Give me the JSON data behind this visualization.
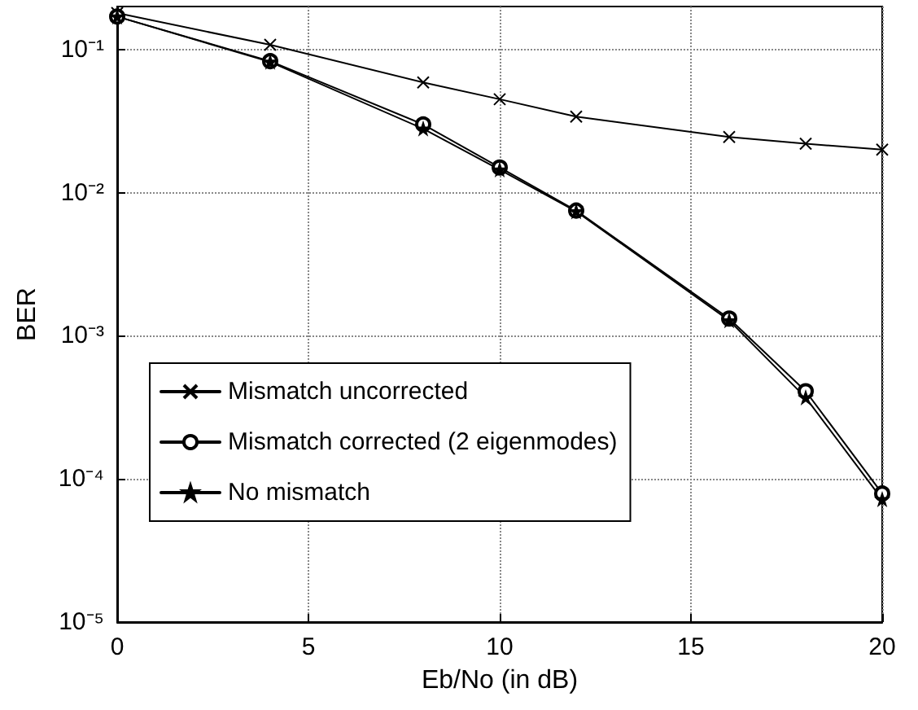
{
  "chart_data": {
    "type": "line",
    "xlabel": "Eb/No (in dB)",
    "ylabel": "BER",
    "series": [
      {
        "name": "Mismatch uncorrected",
        "color": "#000000",
        "marker": "cross",
        "x": [
          0,
          4,
          8,
          10,
          12,
          16,
          18,
          20
        ],
        "values": [
          0.18,
          0.108,
          0.059,
          0.045,
          0.034,
          0.0245,
          0.022,
          0.02
        ]
      },
      {
        "name": "Mismatch corrected (2 eigenmodes)",
        "color": "#000000",
        "marker": "circle",
        "x": [
          0,
          4,
          8,
          10,
          12,
          16,
          18,
          20
        ],
        "values": [
          0.17,
          0.083,
          0.03,
          0.015,
          0.0075,
          0.00132,
          0.00041,
          7.9e-05
        ]
      },
      {
        "name": "No mismatch",
        "color": "#000000",
        "marker": "star",
        "x": [
          0,
          4,
          8,
          10,
          12,
          16,
          18,
          20
        ],
        "values": [
          0.17,
          0.082,
          0.028,
          0.0145,
          0.0074,
          0.00128,
          0.00037,
          7.2e-05
        ]
      }
    ],
    "xlim": [
      0,
      20
    ],
    "xticks": [
      0,
      5,
      10,
      15,
      20
    ],
    "ylim": [
      1e-05,
      0.2
    ],
    "yticks": [
      {
        "value": 1e-05,
        "label": "10⁻⁵"
      },
      {
        "value": 0.0001,
        "label": "10⁻⁴"
      },
      {
        "value": 0.001,
        "label": "10⁻³"
      },
      {
        "value": 0.01,
        "label": "10⁻²"
      },
      {
        "value": 0.1,
        "label": "10⁻¹"
      }
    ],
    "log": "y",
    "grid": true,
    "legend": "bottom left",
    "line_style": "solid"
  }
}
